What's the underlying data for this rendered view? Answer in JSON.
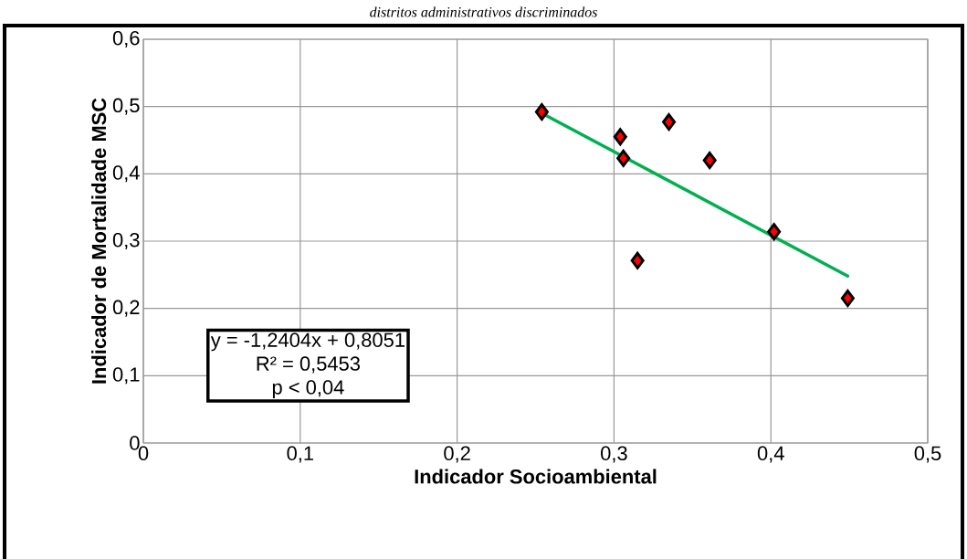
{
  "chart_data": {
    "type": "scatter",
    "title": "distritos administrativos discriminados",
    "xlabel": "Indicador Socioambiental",
    "ylabel": "Indicador de Mortalidade MSC",
    "xlim": [
      0,
      0.5
    ],
    "ylim": [
      0,
      0.6
    ],
    "xticks": [
      0,
      {
        "value": 0.1,
        "label": "0,1"
      },
      {
        "value": 0.2,
        "label": "0,2"
      },
      {
        "value": 0.3,
        "label": "0,3"
      },
      {
        "value": 0.4,
        "label": "0,4"
      },
      {
        "value": 0.5,
        "label": "0,5"
      }
    ],
    "yticks": [
      0,
      {
        "value": 0.1,
        "label": "0,1"
      },
      {
        "value": 0.2,
        "label": "0,2"
      },
      {
        "value": 0.3,
        "label": "0,3"
      },
      {
        "value": 0.4,
        "label": "0,4"
      },
      {
        "value": 0.5,
        "label": "0,5"
      },
      {
        "value": 0.6,
        "label": "0,6"
      }
    ],
    "grid": true,
    "marker": "diamond",
    "series": [
      {
        "type": "scatter",
        "color": "#ff0000",
        "x": [
          0.254,
          0.304,
          0.306,
          0.335,
          0.361,
          0.315,
          0.402,
          0.449
        ],
        "values": [
          0.492,
          0.455,
          0.423,
          0.477,
          0.42,
          0.271,
          0.314,
          0.215
        ]
      },
      {
        "type": "line",
        "color": "#00b050",
        "marker": "none",
        "x": [
          0.254,
          0.449
        ],
        "values": [
          0.49,
          0.248
        ]
      }
    ],
    "annotations": [
      "y = -1,2404x + 0,8051",
      "R² = 0,5453",
      "p < 0,04"
    ]
  }
}
